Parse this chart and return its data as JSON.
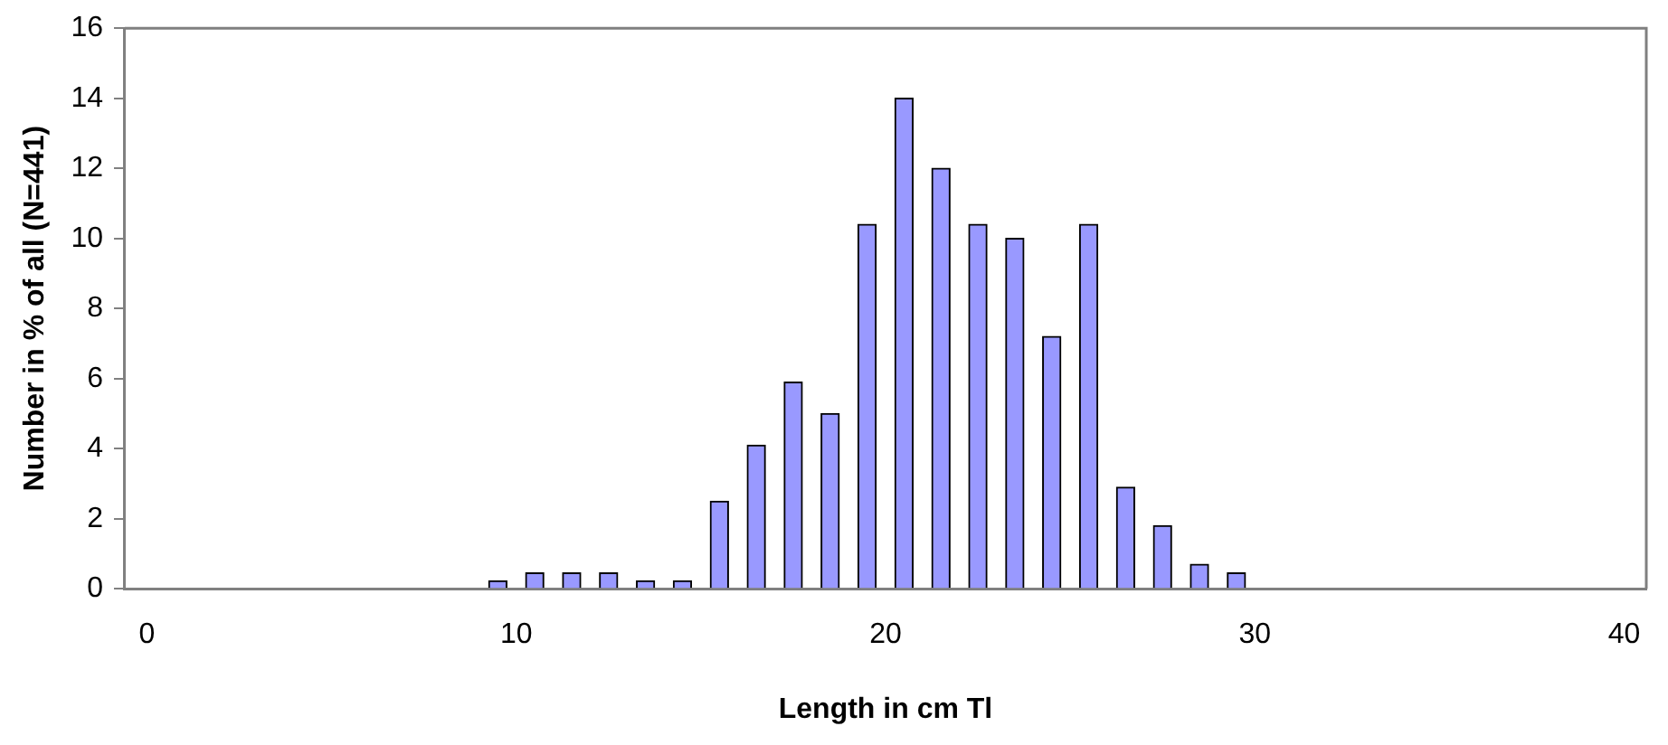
{
  "chart_data": {
    "type": "bar",
    "xlabel": "Length in cm Tl",
    "ylabel": "Number in % of all (N=441)",
    "x": [
      9.5,
      10.5,
      11.5,
      12.5,
      13.5,
      14.5,
      15.5,
      16.5,
      17.5,
      18.5,
      19.5,
      20.5,
      21.5,
      22.5,
      23.5,
      24.5,
      25.5,
      26.5,
      27.5,
      28.5,
      29.5
    ],
    "values": [
      0.23,
      0.45,
      0.45,
      0.45,
      0.23,
      0.23,
      2.5,
      4.1,
      5.9,
      5.0,
      10.4,
      14.0,
      12.0,
      10.4,
      10.0,
      7.2,
      10.4,
      2.9,
      1.8,
      0.7,
      0.45
    ],
    "color": "#9999ff",
    "xlim": [
      -0.6,
      40.6
    ],
    "xticks": [
      0,
      10,
      20,
      30,
      40
    ],
    "ylim": [
      0,
      16
    ],
    "yticks": [
      0,
      2,
      4,
      6,
      8,
      10,
      12,
      14,
      16
    ],
    "grid": false,
    "legend": false
  }
}
